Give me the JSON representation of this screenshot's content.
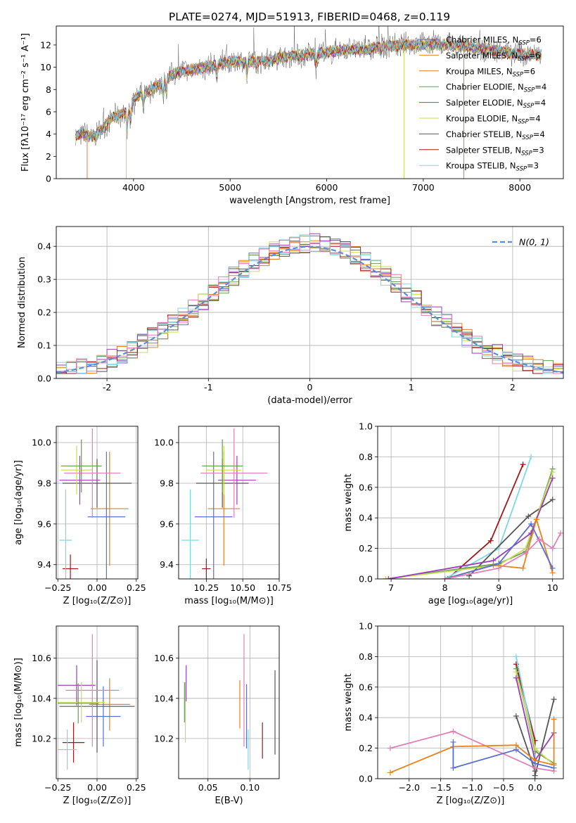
{
  "title": "PLATE=0274, MJD=51913, FIBERID=0468, z=0.119",
  "colors": {
    "c_miles": "#5a6fcf",
    "s_miles": "#e8821e",
    "k_miles": "#e07a25",
    "c_elodie": "#6b9a55",
    "s_elodie": "#9a3fb5",
    "k_elodie": "#c9dc57",
    "c_stelib": "#555555",
    "s_stelib": "#a01818",
    "k_stelib": "#7fd7e0",
    "pink": "#e37fb8",
    "blue": "#6a8fd8",
    "gaussian": "#5a8dd6",
    "grid": "#b0b0b0"
  },
  "chart_data": [
    {
      "id": "spectrum",
      "type": "line",
      "xlabel": "wavelength [Angstrom, rest frame]",
      "ylabel": "Flux [fλ10⁻¹⁷ erg cm⁻² s⁻¹ A⁻¹]",
      "xlim": [
        3200,
        8450
      ],
      "ylim": [
        0,
        13.7
      ],
      "xticks": [
        4000,
        5000,
        6000,
        7000,
        8000
      ],
      "yticks": [
        0,
        2,
        4,
        6,
        8,
        10,
        12
      ],
      "grid": false,
      "legend_position": "top-right",
      "legend": [
        {
          "label": "Chabrier MILES, N",
          "sub": "SSP",
          "value": "=6",
          "color": "c_miles"
        },
        {
          "label": "Salpeter MILES, N",
          "sub": "SSP",
          "value": "=6",
          "color": "s_miles"
        },
        {
          "label": "Kroupa MILES, N",
          "sub": "SSP",
          "value": "=6",
          "color": "k_miles"
        },
        {
          "label": "Chabrier ELODIE, N",
          "sub": "SSP",
          "value": "=4",
          "color": "c_elodie"
        },
        {
          "label": "Salpeter ELODIE, N",
          "sub": "SSP",
          "value": "=4",
          "color": "s_elodie"
        },
        {
          "label": "Kroupa ELODIE, N",
          "sub": "SSP",
          "value": "=4",
          "color": "k_elodie"
        },
        {
          "label": "Chabrier STELIB, N",
          "sub": "SSP",
          "value": "=4",
          "color": "c_stelib"
        },
        {
          "label": "Salpeter STELIB, N",
          "sub": "SSP",
          "value": "=3",
          "color": "s_stelib"
        },
        {
          "label": "Kroupa STELIB, N",
          "sub": "SSP",
          "value": "=3",
          "color": "k_stelib"
        }
      ],
      "continuum": [
        [
          3400,
          4.0
        ],
        [
          3600,
          3.8
        ],
        [
          3800,
          5.6
        ],
        [
          3950,
          6.0
        ],
        [
          4000,
          7.2
        ],
        [
          4200,
          8.0
        ],
        [
          4400,
          9.4
        ],
        [
          4600,
          9.8
        ],
        [
          4800,
          10.1
        ],
        [
          5000,
          10.5
        ],
        [
          5200,
          10.5
        ],
        [
          5400,
          10.6
        ],
        [
          5600,
          11.0
        ],
        [
          5800,
          11.1
        ],
        [
          6000,
          11.3
        ],
        [
          6200,
          11.6
        ],
        [
          6400,
          11.6
        ],
        [
          6600,
          11.9
        ],
        [
          6800,
          12.0
        ],
        [
          7000,
          12.1
        ],
        [
          7200,
          12.0
        ],
        [
          7400,
          11.9
        ],
        [
          7600,
          11.7
        ],
        [
          7800,
          11.4
        ],
        [
          8000,
          11.2
        ],
        [
          8200,
          11.1
        ]
      ],
      "absorption_dips": [
        [
          3934,
          1.5
        ],
        [
          3969,
          1.4
        ],
        [
          4102,
          1.2
        ],
        [
          4305,
          1.4
        ],
        [
          4340,
          1.1
        ],
        [
          4861,
          1.0
        ],
        [
          5175,
          1.2
        ],
        [
          5270,
          0.6
        ],
        [
          5890,
          0.8
        ],
        [
          6563,
          0.6
        ]
      ],
      "spikes": [
        [
          3520,
          0
        ],
        [
          3925,
          0
        ],
        [
          6800,
          0
        ],
        [
          7420,
          0
        ]
      ]
    },
    {
      "id": "residuals",
      "type": "step-histogram",
      "xlabel": "(data-model)/error",
      "ylabel": "Normed distribution",
      "xlim": [
        -2.5,
        2.5
      ],
      "ylim": [
        0,
        0.46
      ],
      "xticks": [
        -2,
        -1,
        0,
        1,
        2
      ],
      "yticks": [
        0.0,
        0.1,
        0.2,
        0.3,
        0.4
      ],
      "grid": true,
      "legend_position": "top-right",
      "legend_label": "N(0, 1)",
      "bin_width": 0.1
    },
    {
      "id": "age_vs_Z",
      "type": "errorbar",
      "xlabel": "Z [log₁₀(Z/Z⊙)]",
      "ylabel": "age  [log₁₀(age/yr)]",
      "xlim": [
        -0.26,
        0.26
      ],
      "ylim": [
        9.33,
        10.08
      ],
      "xticks": [
        -0.25,
        0.0,
        0.25
      ],
      "xticklabels": [
        "−0.25",
        "0.00",
        "0.25"
      ],
      "yticks": [
        9.4,
        9.6,
        9.8,
        10.0
      ],
      "points": [
        {
          "x": -0.17,
          "xerr": 0.05,
          "y": 9.38,
          "yerr": 0.07,
          "color": "s_stelib"
        },
        {
          "x": -0.2,
          "xerr": 0.04,
          "y": 9.52,
          "yerr": 0.25,
          "color": "k_stelib"
        },
        {
          "x": 0.08,
          "xerr": 0.12,
          "y": 9.675,
          "yerr": 0.28,
          "color": "s_miles"
        },
        {
          "x": 0.06,
          "xerr": 0.12,
          "y": 9.635,
          "yerr": 0.32,
          "color": "c_miles"
        },
        {
          "x": 0.0,
          "xerr": 0.22,
          "y": 9.8,
          "yerr": 0.12,
          "color": "c_stelib"
        },
        {
          "x": -0.11,
          "xerr": 0.13,
          "y": 9.815,
          "yerr": 0.12,
          "color": "s_elodie"
        },
        {
          "x": -0.03,
          "xerr": 0.18,
          "y": 9.85,
          "yerr": 0.22,
          "color": "pink"
        },
        {
          "x": -0.13,
          "xerr": 0.1,
          "y": 9.865,
          "yerr": 0.12,
          "color": "k_elodie"
        },
        {
          "x": -0.1,
          "xerr": 0.13,
          "y": 9.885,
          "yerr": 0.13,
          "color": "c_elodie"
        }
      ]
    },
    {
      "id": "age_vs_mass",
      "type": "errorbar",
      "xlabel": "mass [log₁₀(M/M⊙)]",
      "ylabel": "",
      "xlim": [
        10.06,
        10.75
      ],
      "ylim": [
        9.33,
        10.08
      ],
      "xticks": [
        10.25,
        10.5,
        10.75
      ],
      "xticklabels": [
        "10.25",
        "10.50",
        "10.75"
      ],
      "yticks": [
        9.4,
        9.6,
        9.8,
        10.0
      ],
      "points": [
        {
          "x": 10.25,
          "xerr": 0.03,
          "y": 9.38,
          "yerr": 0.05,
          "color": "s_stelib"
        },
        {
          "x": 10.14,
          "xerr": 0.06,
          "y": 9.52,
          "yerr": 0.25,
          "color": "k_stelib"
        },
        {
          "x": 10.37,
          "xerr": 0.11,
          "y": 9.675,
          "yerr": 0.28,
          "color": "s_miles"
        },
        {
          "x": 10.3,
          "xerr": 0.13,
          "y": 9.635,
          "yerr": 0.32,
          "color": "c_miles"
        },
        {
          "x": 10.36,
          "xerr": 0.18,
          "y": 9.8,
          "yerr": 0.12,
          "color": "c_stelib"
        },
        {
          "x": 10.46,
          "xerr": 0.13,
          "y": 9.815,
          "yerr": 0.12,
          "color": "s_elodie"
        },
        {
          "x": 10.44,
          "xerr": 0.23,
          "y": 9.85,
          "yerr": 0.22,
          "color": "pink"
        },
        {
          "x": 10.37,
          "xerr": 0.12,
          "y": 9.865,
          "yerr": 0.12,
          "color": "k_elodie"
        },
        {
          "x": 10.36,
          "xerr": 0.14,
          "y": 9.885,
          "yerr": 0.13,
          "color": "c_elodie"
        }
      ]
    },
    {
      "id": "mass_weight_vs_age",
      "type": "line",
      "xlabel": "age  [log₁₀(age/yr)]",
      "ylabel": "mass weight",
      "xlim": [
        6.75,
        10.2
      ],
      "ylim": [
        0,
        1.0
      ],
      "xticks": [
        7,
        8,
        9,
        10
      ],
      "yticks": [
        0.0,
        0.2,
        0.4,
        0.6,
        0.8,
        1.0
      ],
      "grid": true,
      "series": [
        {
          "color": "s_stelib",
          "x": [
            8.05,
            8.85,
            9.45
          ],
          "y": [
            0.0,
            0.25,
            0.75
          ]
        },
        {
          "color": "k_stelib",
          "x": [
            8.0,
            9.0,
            9.6
          ],
          "y": [
            0.0,
            0.2,
            0.8
          ]
        },
        {
          "color": "c_stelib",
          "x": [
            8.45,
            9.55,
            10.0
          ],
          "y": [
            0.02,
            0.41,
            0.52
          ]
        },
        {
          "color": "c_elodie",
          "x": [
            6.9,
            9.0,
            9.5,
            10.0
          ],
          "y": [
            0.0,
            0.1,
            0.18,
            0.72
          ]
        },
        {
          "color": "k_elodie",
          "x": [
            6.9,
            9.0,
            9.5,
            10.0
          ],
          "y": [
            0.0,
            0.09,
            0.2,
            0.7
          ]
        },
        {
          "color": "s_elodie",
          "x": [
            6.95,
            8.9,
            9.6,
            10.0
          ],
          "y": [
            0.0,
            0.12,
            0.3,
            0.66
          ]
        },
        {
          "color": "s_miles",
          "x": [
            8.0,
            8.9,
            9.45,
            9.7,
            10.0
          ],
          "y": [
            0.0,
            0.09,
            0.07,
            0.39,
            0.04
          ]
        },
        {
          "color": "c_miles",
          "x": [
            8.0,
            9.0,
            9.6,
            10.0
          ],
          "y": [
            0.0,
            0.1,
            0.36,
            0.07
          ]
        },
        {
          "color": "pink",
          "x": [
            8.0,
            9.0,
            9.5,
            9.75,
            10.0,
            10.15
          ],
          "y": [
            0.0,
            0.07,
            0.17,
            0.26,
            0.2,
            0.3
          ]
        }
      ]
    },
    {
      "id": "mass_vs_Z",
      "type": "errorbar",
      "xlabel": "Z [log₁₀(Z/Z⊙)]",
      "ylabel": "mass [log₁₀(M/M⊙)]",
      "xlim": [
        -0.26,
        0.26
      ],
      "ylim": [
        10.0,
        10.76
      ],
      "xticks": [
        -0.25,
        0.0,
        0.25
      ],
      "xticklabels": [
        "−0.25",
        "0.00",
        "0.25"
      ],
      "yticks": [
        10.2,
        10.4,
        10.6
      ],
      "points": [
        {
          "x": -0.15,
          "xerr": 0.07,
          "y": 10.18,
          "yerr": 0.1,
          "color": "s_stelib"
        },
        {
          "x": -0.19,
          "xerr": 0.06,
          "y": 10.145,
          "yerr": 0.1,
          "color": "k_stelib"
        },
        {
          "x": 0.08,
          "xerr": 0.13,
          "y": 10.37,
          "yerr": 0.13,
          "color": "s_miles"
        },
        {
          "x": 0.04,
          "xerr": 0.11,
          "y": 10.31,
          "yerr": 0.15,
          "color": "c_miles"
        },
        {
          "x": 0.0,
          "xerr": 0.24,
          "y": 10.36,
          "yerr": 0.23,
          "color": "c_stelib"
        },
        {
          "x": -0.13,
          "xerr": 0.12,
          "y": 10.465,
          "yerr": 0.1,
          "color": "s_elodie"
        },
        {
          "x": -0.03,
          "xerr": 0.17,
          "y": 10.44,
          "yerr": 0.28,
          "color": "pink"
        },
        {
          "x": -0.1,
          "xerr": 0.15,
          "y": 10.38,
          "yerr": 0.1,
          "color": "k_elodie"
        },
        {
          "x": -0.12,
          "xerr": 0.13,
          "y": 10.375,
          "yerr": 0.1,
          "color": "c_elodie"
        }
      ]
    },
    {
      "id": "mass_vs_EBV",
      "type": "errorbar",
      "xlabel": "E(B-V)",
      "ylabel": "",
      "xlim": [
        0.015,
        0.135
      ],
      "ylim": [
        10.0,
        10.76
      ],
      "xticks": [
        0.05,
        0.1
      ],
      "xticklabels": [
        "0.05",
        "0.10"
      ],
      "yticks": [
        10.2,
        10.4,
        10.6
      ],
      "points": [
        {
          "x": 0.115,
          "xerr": 0,
          "y": 10.19,
          "yerr": 0.09,
          "color": "s_stelib"
        },
        {
          "x": 0.098,
          "xerr": 0,
          "y": 10.145,
          "yerr": 0.1,
          "color": "k_stelib"
        },
        {
          "x": 0.088,
          "xerr": 0,
          "y": 10.37,
          "yerr": 0.12,
          "color": "s_miles"
        },
        {
          "x": 0.096,
          "xerr": 0,
          "y": 10.31,
          "yerr": 0.16,
          "color": "c_miles"
        },
        {
          "x": 0.13,
          "xerr": 0,
          "y": 10.33,
          "yerr": 0.21,
          "color": "c_stelib"
        },
        {
          "x": 0.024,
          "xerr": 0,
          "y": 10.475,
          "yerr": 0.09,
          "color": "s_elodie"
        },
        {
          "x": 0.093,
          "xerr": 0,
          "y": 10.44,
          "yerr": 0.28,
          "color": "pink"
        },
        {
          "x": 0.023,
          "xerr": 0,
          "y": 10.33,
          "yerr": 0.15,
          "color": "k_elodie"
        },
        {
          "x": 0.022,
          "xerr": 0,
          "y": 10.38,
          "yerr": 0.1,
          "color": "c_elodie"
        }
      ]
    },
    {
      "id": "mass_weight_vs_Z",
      "type": "line",
      "xlabel": "Z [log₁₀(Z/Z⊙)]",
      "ylabel": "mass weight",
      "xlim": [
        -2.5,
        0.45
      ],
      "ylim": [
        0,
        1.0
      ],
      "xticks": [
        -2.0,
        -1.5,
        -1.0,
        -0.5,
        0.0
      ],
      "xticklabels": [
        "−2.0",
        "−1.5",
        "−1.0",
        "−0.5",
        "0.0"
      ],
      "yticks": [
        0.0,
        0.2,
        0.4,
        0.6,
        0.8,
        1.0
      ],
      "grid": true,
      "series": [
        {
          "color": "s_stelib",
          "x": [
            -0.3,
            0.0,
            0.0
          ],
          "y": [
            0.75,
            0.25,
            0.0
          ]
        },
        {
          "color": "k_stelib",
          "x": [
            -0.3,
            0.0,
            0.0
          ],
          "y": [
            0.8,
            0.2,
            0.0
          ]
        },
        {
          "color": "c_stelib",
          "x": [
            -0.3,
            0.0,
            0.0,
            0.3
          ],
          "y": [
            0.41,
            0.05,
            0.02,
            0.52
          ]
        },
        {
          "color": "c_elodie",
          "x": [
            -0.3,
            0.0,
            0.3
          ],
          "y": [
            0.72,
            0.18,
            0.1
          ]
        },
        {
          "color": "k_elodie",
          "x": [
            -0.3,
            0.0,
            0.3
          ],
          "y": [
            0.7,
            0.2,
            0.09
          ]
        },
        {
          "color": "s_elodie",
          "x": [
            -0.3,
            0.0,
            0.3
          ],
          "y": [
            0.66,
            0.12,
            0.3
          ]
        },
        {
          "color": "pink",
          "x": [
            -2.3,
            -1.3,
            0.0,
            0.3
          ],
          "y": [
            0.2,
            0.31,
            0.07,
            0.05
          ]
        },
        {
          "color": "s_miles",
          "x": [
            -2.3,
            -1.3,
            -0.3,
            0.0,
            0.3,
            0.3
          ],
          "y": [
            0.04,
            0.21,
            0.22,
            0.12,
            0.09,
            0.39
          ]
        },
        {
          "color": "c_miles",
          "x": [
            -1.3,
            -1.3,
            -0.3,
            0.0,
            0.3
          ],
          "y": [
            0.24,
            0.07,
            0.19,
            0.1,
            0.07
          ]
        }
      ]
    }
  ]
}
